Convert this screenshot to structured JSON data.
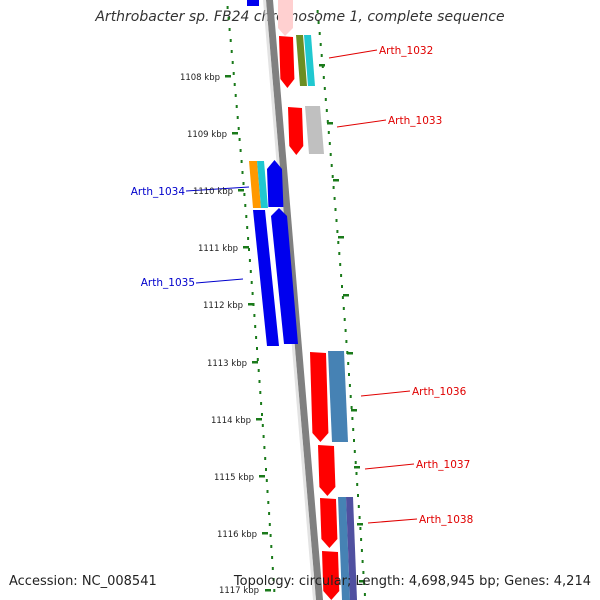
{
  "title": "Arthrobacter sp. FB24 chromosome 1, complete sequence",
  "footer": {
    "accession": "Accession: NC_008541",
    "topology": "Topology: circular; Length: 4,698,945 bp; Genes: 4,214"
  },
  "scale": {
    "ticks": [
      "1108 kbp",
      "1109 kbp",
      "1110 kbp",
      "1111 kbp",
      "1112 kbp",
      "1113 kbp",
      "1114 kbp",
      "1115 kbp",
      "1116 kbp",
      "1117 kbp"
    ]
  },
  "gene_labels": {
    "forward": [
      "Arth_1032",
      "Arth_1033",
      "Arth_1036",
      "Arth_1037",
      "Arth_1038"
    ],
    "reverse": [
      "Arth_1034",
      "Arth_1035"
    ]
  },
  "colors": {
    "forward_label": "#e00000",
    "reverse_label": "#0000cc",
    "forward_cds": "#ff0000",
    "reverse_cds": "#0000ee",
    "backbone": "#808080",
    "tick_dots": "#1a7a1a",
    "cog_green": "#6b8e23",
    "cog_cyan": "#20c8d0",
    "cog_grey": "#c0c0c0",
    "cog_orange": "#ff9900",
    "cog_steelblue": "#4682b4",
    "cog_slate": "#5050a0"
  }
}
